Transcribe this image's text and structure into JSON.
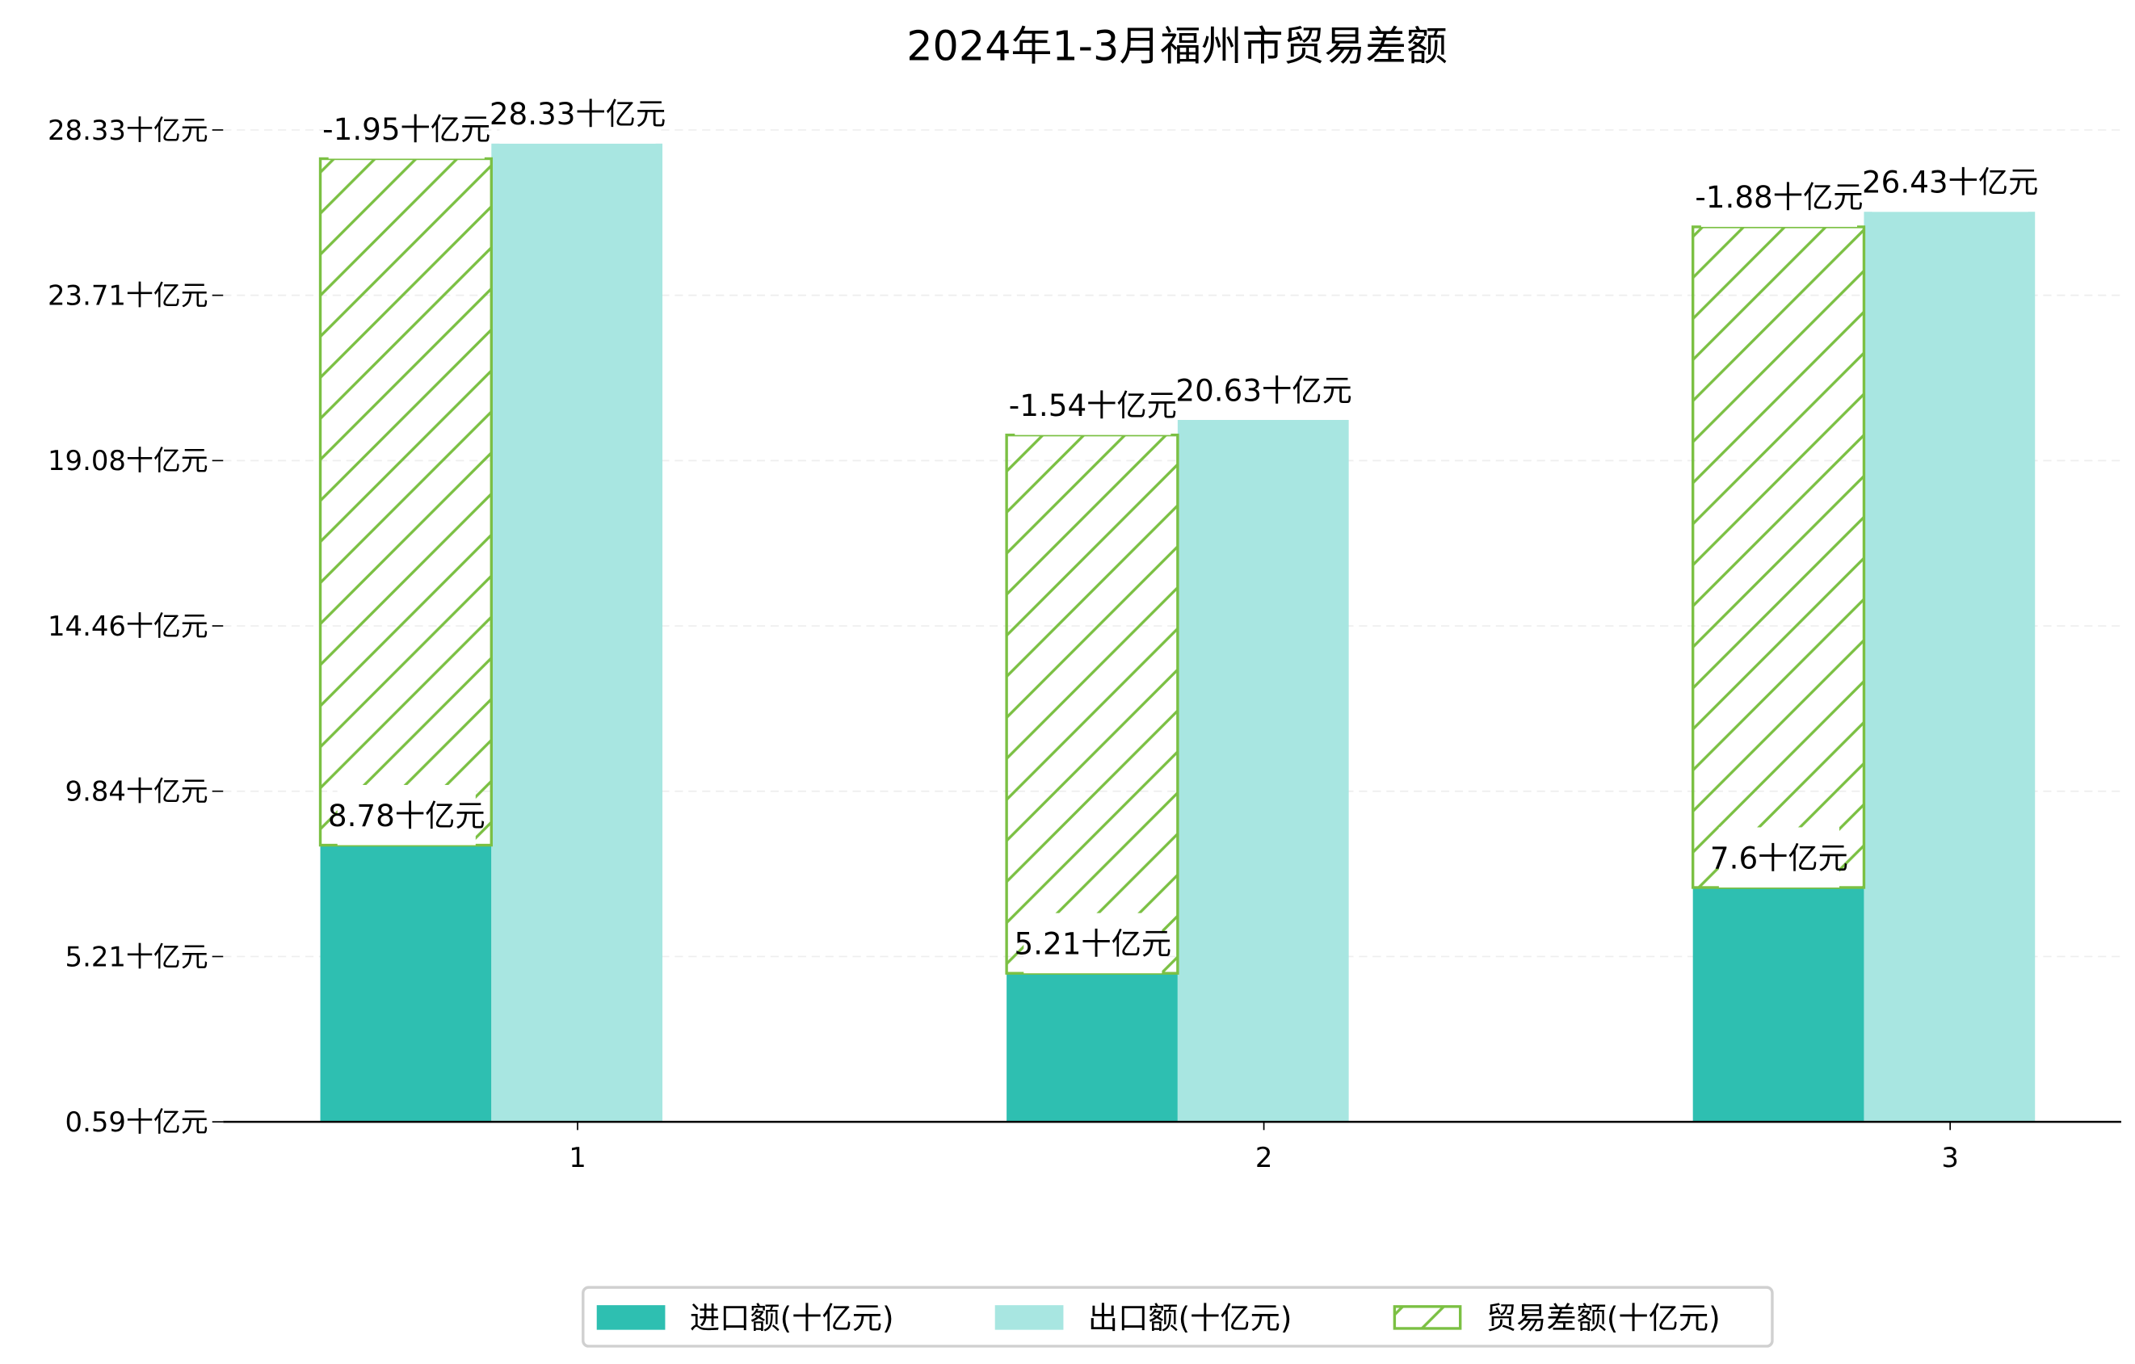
{
  "chart_data": {
    "type": "bar",
    "title": "2024年1-3月福州市贸易差额",
    "categories": [
      "1",
      "2",
      "3"
    ],
    "ylim": [
      1.07,
      28.71
    ],
    "ytick_labels": [
      "0.59十亿元",
      "5.21十亿元",
      "9.84十亿元",
      "14.46十亿元",
      "19.08十亿元",
      "23.71十亿元",
      "28.33十亿元"
    ],
    "grid": true,
    "legend_placement": "bottom-center",
    "series": [
      {
        "name": "进口额(十亿元)",
        "color": "#2ebfb1",
        "values": [
          8.78,
          5.21,
          7.6
        ],
        "labels": [
          "8.78十亿元",
          "5.21十亿元",
          "7.6十亿元"
        ]
      },
      {
        "name": "出口额(十亿元)",
        "color": "#a8e6e1",
        "values": [
          28.33,
          20.63,
          26.43
        ],
        "labels": [
          "28.33十亿元",
          "20.63十亿元",
          "26.43十亿元"
        ]
      },
      {
        "name": "贸易差额(十亿元)",
        "color": "#7bc043",
        "values": [
          -1.95,
          -1.54,
          -1.88
        ],
        "bar_top": [
          27.91,
          20.21,
          26.01
        ],
        "labels": [
          "-1.95十亿元",
          "-1.54十亿元",
          "-1.88十亿元"
        ]
      }
    ]
  }
}
